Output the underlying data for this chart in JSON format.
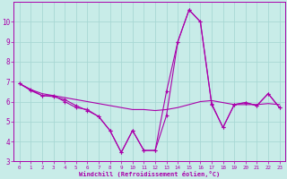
{
  "background_color": "#c8ece8",
  "grid_color": "#a8d8d4",
  "line_color": "#aa00aa",
  "marker": "+",
  "xlabel": "Windchill (Refroidissement éolien,°C)",
  "xlim": [
    -0.5,
    23.5
  ],
  "ylim": [
    3,
    11
  ],
  "yticks": [
    3,
    4,
    5,
    6,
    7,
    8,
    9,
    10
  ],
  "xticks": [
    0,
    1,
    2,
    3,
    4,
    5,
    6,
    7,
    8,
    9,
    10,
    11,
    12,
    13,
    14,
    15,
    16,
    17,
    18,
    19,
    20,
    21,
    22,
    23
  ],
  "series1_x": [
    0,
    1,
    2,
    3,
    4,
    5,
    6,
    7,
    8,
    9,
    10,
    11,
    12,
    13,
    14,
    15,
    16,
    17,
    18,
    19,
    20,
    21,
    22,
    23
  ],
  "series1_y": [
    6.9,
    6.6,
    6.4,
    6.3,
    6.2,
    6.1,
    6.0,
    5.9,
    5.8,
    5.7,
    5.6,
    5.6,
    5.55,
    5.6,
    5.7,
    5.85,
    6.0,
    6.05,
    5.95,
    5.85,
    5.85,
    5.85,
    5.9,
    5.85
  ],
  "series2_x": [
    0,
    1,
    2,
    3,
    4,
    5,
    6,
    7,
    8,
    9,
    10,
    11,
    12,
    13,
    14,
    15,
    16,
    17,
    18,
    19,
    20,
    21,
    22,
    23
  ],
  "series2_y": [
    6.9,
    6.6,
    6.3,
    6.3,
    6.0,
    5.7,
    5.6,
    5.25,
    4.55,
    3.45,
    4.55,
    3.55,
    3.55,
    5.3,
    9.0,
    10.6,
    10.0,
    5.9,
    4.7,
    5.85,
    5.95,
    5.8,
    6.4,
    5.7
  ],
  "series3_x": [
    0,
    1,
    2,
    3,
    4,
    5,
    6,
    7,
    8,
    9,
    10,
    11,
    12,
    13,
    14,
    15,
    16,
    17,
    18,
    19,
    20,
    21,
    22,
    23
  ],
  "series3_y": [
    6.9,
    6.55,
    6.3,
    6.25,
    6.1,
    5.8,
    5.55,
    5.25,
    4.55,
    3.45,
    4.55,
    3.55,
    3.55,
    6.5,
    9.0,
    10.6,
    10.0,
    5.85,
    4.7,
    5.85,
    5.95,
    5.8,
    6.4,
    5.7
  ]
}
